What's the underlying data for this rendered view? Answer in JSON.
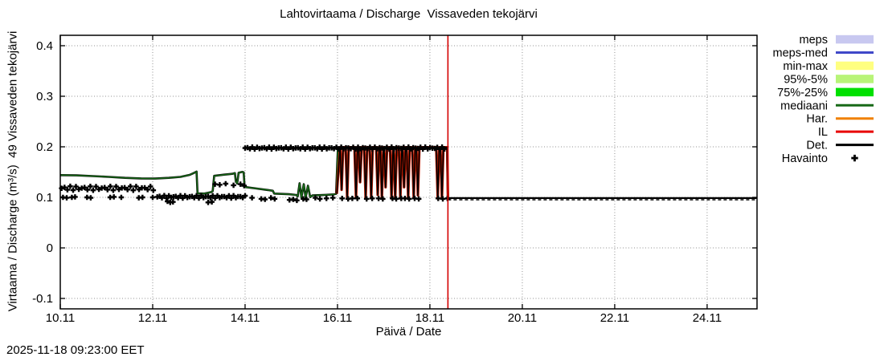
{
  "page_bg": "#ffffff",
  "header": {
    "title": "Lahtovirtaama / Discharge  Vissaveden tekojärvi"
  },
  "footer": {
    "timestamp": "2025-11-18 09:23:00 EET"
  },
  "chart_data": {
    "type": "line",
    "title": "Lahtovirtaama / Discharge  Vissaveden tekojärvi",
    "xlabel": "Päivä / Date",
    "ylabel": "Virtaama / Discharge (m³/s)  49 Vissaveden tekojärvi",
    "x_unit_note": "days since 10.11 00:00",
    "xlim": [
      0,
      15.08
    ],
    "ylim": [
      -0.1206,
      0.4206
    ],
    "grid": true,
    "grid_color": "#909090",
    "x_ticks": [
      {
        "t": 0,
        "label": "10.11"
      },
      {
        "t": 2,
        "label": "12.11"
      },
      {
        "t": 4,
        "label": "14.11"
      },
      {
        "t": 6,
        "label": "16.11"
      },
      {
        "t": 8,
        "label": "18.11"
      },
      {
        "t": 10,
        "label": "20.11"
      },
      {
        "t": 12,
        "label": "22.11"
      },
      {
        "t": 14,
        "label": "24.11"
      }
    ],
    "y_ticks": [
      {
        "v": -0.1,
        "label": "-0.1"
      },
      {
        "v": 0,
        "label": "0"
      },
      {
        "v": 0.1,
        "label": "0.1"
      },
      {
        "v": 0.2,
        "label": "0.2"
      },
      {
        "v": 0.3,
        "label": "0.3"
      },
      {
        "v": 0.4,
        "label": "0.4"
      }
    ],
    "now_line": {
      "t": 8.39,
      "color": "#d40000",
      "label": "forecast start 18.11 09:23"
    },
    "legend": {
      "position": "right-outside",
      "items": [
        {
          "label": "meps",
          "swatch": "band",
          "color": "#c8c8f0"
        },
        {
          "label": "meps-med",
          "swatch": "line",
          "color": "#4048c8"
        },
        {
          "label": "min-max",
          "swatch": "band",
          "color": "#ffff80"
        },
        {
          "label": "95%-5%",
          "swatch": "band",
          "color": "#b8f478"
        },
        {
          "label": "75%-25%",
          "swatch": "band",
          "color": "#00e000"
        },
        {
          "label": "mediaani",
          "swatch": "line",
          "color": "#176917"
        },
        {
          "label": "Har.",
          "swatch": "line",
          "color": "#f08000"
        },
        {
          "label": "IL",
          "swatch": "line",
          "color": "#e80000"
        },
        {
          "label": "Det.",
          "swatch": "line",
          "color": "#000000"
        },
        {
          "label": "Havainto",
          "swatch": "plus",
          "color": "#000000"
        }
      ]
    },
    "series": [
      {
        "name": "mediaani-with-det-overlap",
        "type": "line",
        "color": "#176917",
        "width": 1.5,
        "outline": {
          "color": "#000000",
          "width": 2.6
        },
        "points": [
          [
            0,
            0.144
          ],
          [
            0.35,
            0.1435
          ],
          [
            0.7,
            0.142
          ],
          [
            1.05,
            0.1405
          ],
          [
            1.4,
            0.1385
          ],
          [
            1.75,
            0.1375
          ],
          [
            2.05,
            0.1372
          ],
          [
            2.35,
            0.1385
          ],
          [
            2.6,
            0.1405
          ],
          [
            2.8,
            0.1445
          ],
          [
            2.9,
            0.1485
          ],
          [
            2.95,
            0.151
          ],
          [
            2.97,
            0.108
          ],
          [
            3.12,
            0.1075
          ],
          [
            3.27,
            0.1105
          ],
          [
            3.3,
            0.1125
          ],
          [
            3.33,
            0.1425
          ],
          [
            3.55,
            0.145
          ],
          [
            3.72,
            0.1465
          ],
          [
            3.78,
            0.148
          ],
          [
            3.8,
            0.131
          ],
          [
            3.83,
            0.1275
          ],
          [
            3.86,
            0.1485
          ],
          [
            3.94,
            0.1505
          ],
          [
            3.97,
            0.1495
          ],
          [
            3.99,
            0.1205
          ],
          [
            4.25,
            0.1175
          ],
          [
            4.5,
            0.1145
          ],
          [
            4.6,
            0.113
          ],
          [
            4.63,
            0.1075
          ],
          [
            4.95,
            0.1062
          ],
          [
            5.1,
            0.1048
          ],
          [
            5.14,
            0.102
          ],
          [
            5.18,
            0.128
          ],
          [
            5.22,
            0.1
          ],
          [
            5.27,
            0.126
          ],
          [
            5.31,
            0.099
          ],
          [
            5.36,
            0.123
          ],
          [
            5.41,
            0.1005
          ],
          [
            5.46,
            0.1038
          ],
          [
            5.75,
            0.105
          ],
          [
            5.92,
            0.1058
          ],
          [
            5.97,
            0.107
          ],
          [
            5.99,
            0.155
          ],
          [
            6.01,
            0.199
          ],
          [
            8.37,
            0.199
          ],
          [
            8.39,
            0.099
          ]
        ]
      },
      {
        "name": "il-det-oscillation",
        "type": "spiketrain",
        "color": "#b01800",
        "width": 3.2,
        "topcoat": {
          "color": "#000000",
          "width": 1.5
        },
        "base": 0.199,
        "start": 5.985,
        "startv": 0.107,
        "end": 8.39,
        "endv": 0.098,
        "spike_halfwidth": 0.033,
        "spikes": [
          [
            6.09,
            0.115
          ],
          [
            6.21,
            0.099
          ],
          [
            6.4,
            0.099
          ],
          [
            6.49,
            0.13
          ],
          [
            6.61,
            0.098
          ],
          [
            6.73,
            0.099
          ],
          [
            6.87,
            0.105
          ],
          [
            6.96,
            0.099
          ],
          [
            7.04,
            0.12
          ],
          [
            7.17,
            0.098
          ],
          [
            7.25,
            0.099
          ],
          [
            7.36,
            0.098
          ],
          [
            7.44,
            0.12
          ],
          [
            7.53,
            0.098
          ],
          [
            7.65,
            0.099
          ],
          [
            7.74,
            0.104
          ],
          [
            8.17,
            0.098
          ],
          [
            8.26,
            0.098
          ]
        ]
      },
      {
        "name": "det-forecast",
        "type": "line",
        "color": "#000000",
        "width": 2.2,
        "points": [
          [
            8.39,
            0.0985
          ],
          [
            15.07,
            0.0985
          ]
        ]
      },
      {
        "name": "det-forecast-dashed",
        "type": "line",
        "color": "#000000",
        "width": 1.6,
        "dash": "4 3",
        "points": [
          [
            8.39,
            0.0952
          ],
          [
            15.07,
            0.0952
          ]
        ]
      }
    ],
    "observations": {
      "name": "havainto",
      "marker": "plus",
      "color": "#000000",
      "runs": [
        {
          "from": 0.03,
          "to": 2.02,
          "step": 0.062,
          "value": 0.118,
          "jitter": 0.004
        },
        {
          "from": 2.1,
          "to": 4.04,
          "step": 0.05,
          "value": 0.101,
          "jitter": 0.0025
        },
        {
          "from": 4.0,
          "to": 8.36,
          "step": 0.052,
          "value": 0.1975,
          "jitter": 0.002
        }
      ],
      "points": [
        [
          0.06,
          0.1
        ],
        [
          0.14,
          0.099
        ],
        [
          0.25,
          0.1
        ],
        [
          0.32,
          0.101
        ],
        [
          0.58,
          0.1
        ],
        [
          0.66,
          0.099
        ],
        [
          1.08,
          0.1
        ],
        [
          1.16,
          0.101
        ],
        [
          1.32,
          0.1
        ],
        [
          1.7,
          0.099
        ],
        [
          1.78,
          0.1
        ],
        [
          2.0,
          0.1
        ],
        [
          2.32,
          0.092
        ],
        [
          2.38,
          0.09
        ],
        [
          2.44,
          0.091
        ],
        [
          3.2,
          0.09
        ],
        [
          3.28,
          0.091
        ],
        [
          3.35,
          0.126
        ],
        [
          3.45,
          0.125
        ],
        [
          3.58,
          0.127
        ],
        [
          3.75,
          0.124
        ],
        [
          3.9,
          0.126
        ],
        [
          3.98,
          0.123
        ],
        [
          4.15,
          0.099
        ],
        [
          4.35,
          0.097
        ],
        [
          4.43,
          0.096
        ],
        [
          4.56,
          0.099
        ],
        [
          4.64,
          0.097
        ],
        [
          4.96,
          0.095
        ],
        [
          5.04,
          0.096
        ],
        [
          5.12,
          0.094
        ],
        [
          5.26,
          0.097
        ],
        [
          5.33,
          0.096
        ],
        [
          5.52,
          0.099
        ],
        [
          5.62,
          0.097
        ],
        [
          5.76,
          0.098
        ],
        [
          5.9,
          0.099
        ],
        [
          6.1,
          0.098
        ],
        [
          6.23,
          0.097
        ],
        [
          6.32,
          0.098
        ],
        [
          6.43,
          0.098
        ],
        [
          6.63,
          0.097
        ],
        [
          6.75,
          0.098
        ],
        [
          6.89,
          0.098
        ],
        [
          6.98,
          0.097
        ],
        [
          7.19,
          0.098
        ],
        [
          7.27,
          0.097
        ],
        [
          7.38,
          0.098
        ],
        [
          7.46,
          0.098
        ],
        [
          7.55,
          0.097
        ],
        [
          7.67,
          0.098
        ],
        [
          7.76,
          0.097
        ],
        [
          8.18,
          0.098
        ],
        [
          8.28,
          0.097
        ],
        [
          8.38,
          0.098
        ]
      ]
    }
  }
}
